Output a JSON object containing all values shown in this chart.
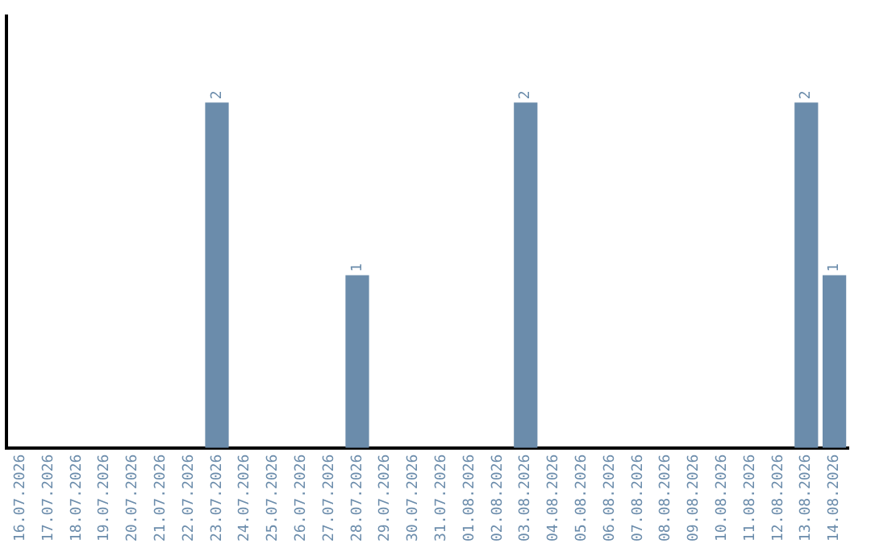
{
  "chart_data": {
    "type": "bar",
    "categories": [
      "16.07.2026",
      "17.07.2026",
      "18.07.2026",
      "19.07.2026",
      "20.07.2026",
      "21.07.2026",
      "22.07.2026",
      "23.07.2026",
      "24.07.2026",
      "25.07.2026",
      "26.07.2026",
      "27.07.2026",
      "28.07.2026",
      "29.07.2026",
      "30.07.2026",
      "31.07.2026",
      "01.08.2026",
      "02.08.2026",
      "03.08.2026",
      "04.08.2026",
      "05.08.2026",
      "06.08.2026",
      "07.08.2026",
      "08.08.2026",
      "09.08.2026",
      "10.08.2026",
      "11.08.2026",
      "12.08.2026",
      "13.08.2026",
      "14.08.2026"
    ],
    "values": [
      0,
      0,
      0,
      0,
      0,
      0,
      0,
      2,
      0,
      0,
      0,
      0,
      1,
      0,
      0,
      0,
      0,
      0,
      2,
      0,
      0,
      0,
      0,
      0,
      0,
      0,
      0,
      0,
      2,
      1
    ],
    "value_labels": [
      null,
      null,
      null,
      null,
      null,
      null,
      null,
      "2",
      null,
      null,
      null,
      null,
      "1",
      null,
      null,
      null,
      null,
      null,
      "2",
      null,
      null,
      null,
      null,
      null,
      null,
      null,
      null,
      null,
      "2",
      "1"
    ],
    "color": "#6b8cab",
    "grid": false,
    "legend": false
  }
}
